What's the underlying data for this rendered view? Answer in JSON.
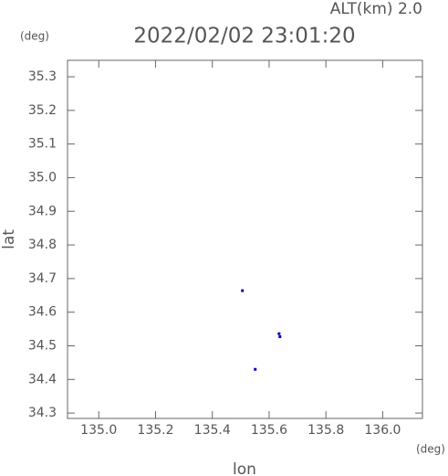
{
  "chart_data": {
    "type": "scatter",
    "title": "2022/02/02 23:01:20",
    "subtitle": "ALT(km) 2.0",
    "x_label": "lon",
    "y_label": "lat",
    "x_unit": "(deg)",
    "y_unit": "(deg)",
    "color": "#0000cc",
    "x": [
      135.506,
      135.635,
      135.638,
      135.551
    ],
    "values": [
      34.664,
      34.536,
      34.527,
      34.43
    ],
    "xlim": [
      134.89,
      136.14
    ],
    "ylim": [
      34.284,
      35.349
    ],
    "xticks": [
      {
        "value": 135.0,
        "label": "135.0"
      },
      135.2,
      135.4,
      135.6,
      135.8,
      {
        "value": 136.0,
        "label": "136.0"
      }
    ],
    "yticks": [
      34.3,
      34.4,
      34.5,
      34.6,
      34.7,
      34.8,
      34.9,
      {
        "value": 35.0,
        "label": "35.0"
      },
      35.1,
      35.2,
      35.3
    ]
  }
}
